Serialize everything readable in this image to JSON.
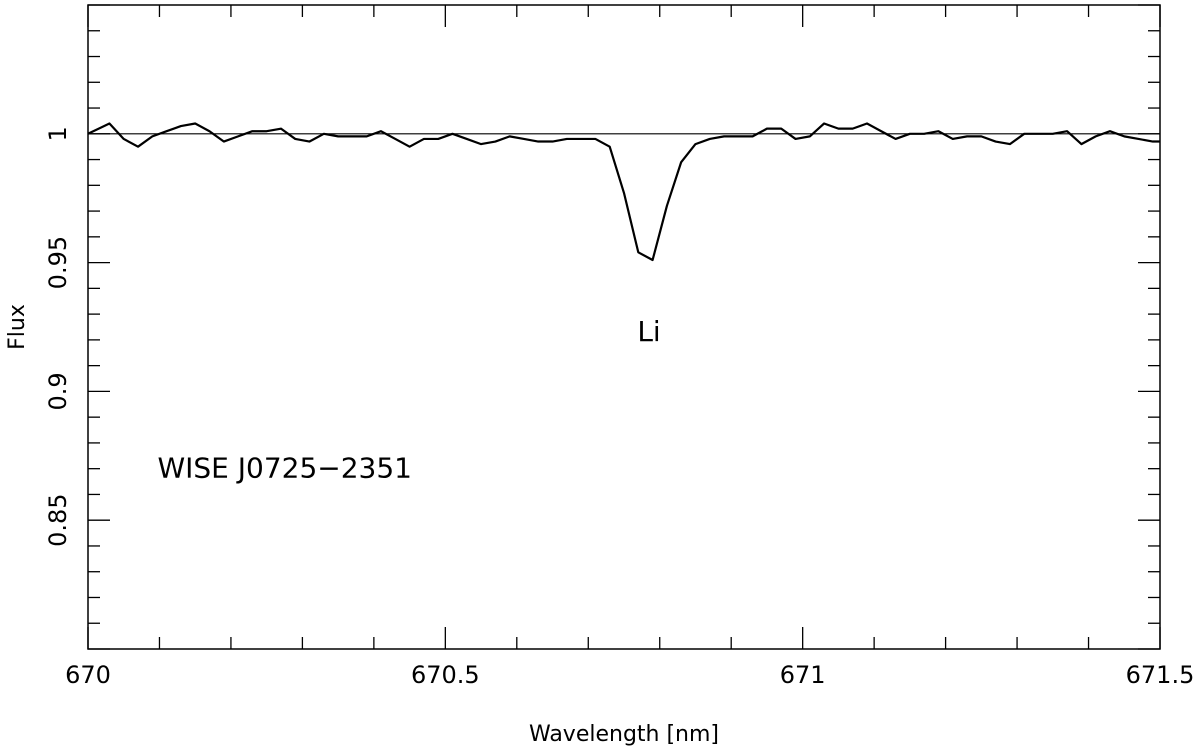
{
  "chart_data": {
    "type": "line",
    "title": "",
    "xlabel": "Wavelength [nm]",
    "ylabel": "Flux",
    "xlim": [
      670,
      671.5
    ],
    "ylim": [
      0.8,
      1.05
    ],
    "grid": false,
    "x_ticks": [
      670,
      670.5,
      671,
      671.5
    ],
    "x_tick_labels": [
      "670",
      "670.5",
      "671",
      "671.5"
    ],
    "y_ticks": [
      0.85,
      0.9,
      0.95,
      1.0
    ],
    "y_tick_labels": [
      "0.85",
      "0.9",
      "0.95",
      "1"
    ],
    "reference_line": {
      "y": 1.0
    },
    "annotations": [
      {
        "text": "Li",
        "x": 670.785,
        "y": 0.925
      },
      {
        "text": "WISE J0725−2351",
        "x": 670.1,
        "y": 0.872
      }
    ],
    "series": [
      {
        "x": [
          670.0,
          670.03,
          670.05,
          670.07,
          670.09,
          670.11,
          670.13,
          670.15,
          670.17,
          670.19,
          670.21,
          670.23,
          670.25,
          670.27,
          670.29,
          670.31,
          670.33,
          670.35,
          670.37,
          670.39,
          670.41,
          670.43,
          670.45,
          670.47,
          670.49,
          670.51,
          670.53,
          670.55,
          670.57,
          670.59,
          670.61,
          670.63,
          670.65,
          670.67,
          670.69,
          670.71,
          670.73,
          670.75,
          670.77,
          670.79,
          670.81,
          670.83,
          670.85,
          670.87,
          670.89,
          670.91,
          670.93,
          670.95,
          670.97,
          670.99,
          671.01,
          671.03,
          671.05,
          671.07,
          671.09,
          671.11,
          671.13,
          671.15,
          671.17,
          671.19,
          671.21,
          671.23,
          671.25,
          671.27,
          671.29,
          671.31,
          671.33,
          671.35,
          671.37,
          671.39,
          671.41,
          671.43,
          671.45,
          671.47,
          671.49,
          671.5
        ],
        "y": [
          1.0,
          1.004,
          0.998,
          0.995,
          0.999,
          1.001,
          1.003,
          1.004,
          1.001,
          0.997,
          0.999,
          1.001,
          1.001,
          1.002,
          0.998,
          0.997,
          1.0,
          0.999,
          0.999,
          0.999,
          1.001,
          0.998,
          0.995,
          0.998,
          0.998,
          1.0,
          0.998,
          0.996,
          0.997,
          0.999,
          0.998,
          0.997,
          0.997,
          0.998,
          0.998,
          0.998,
          0.995,
          0.977,
          0.954,
          0.951,
          0.972,
          0.989,
          0.996,
          0.998,
          0.999,
          0.999,
          0.999,
          1.002,
          1.002,
          0.998,
          0.999,
          1.004,
          1.002,
          1.002,
          1.004,
          1.001,
          0.998,
          1.0,
          1.0,
          1.001,
          0.998,
          0.999,
          0.999,
          0.997,
          0.996,
          1.0,
          1.0,
          1.0,
          1.001,
          0.996,
          0.999,
          1.001,
          0.999,
          0.998,
          0.997,
          0.997
        ]
      }
    ]
  }
}
